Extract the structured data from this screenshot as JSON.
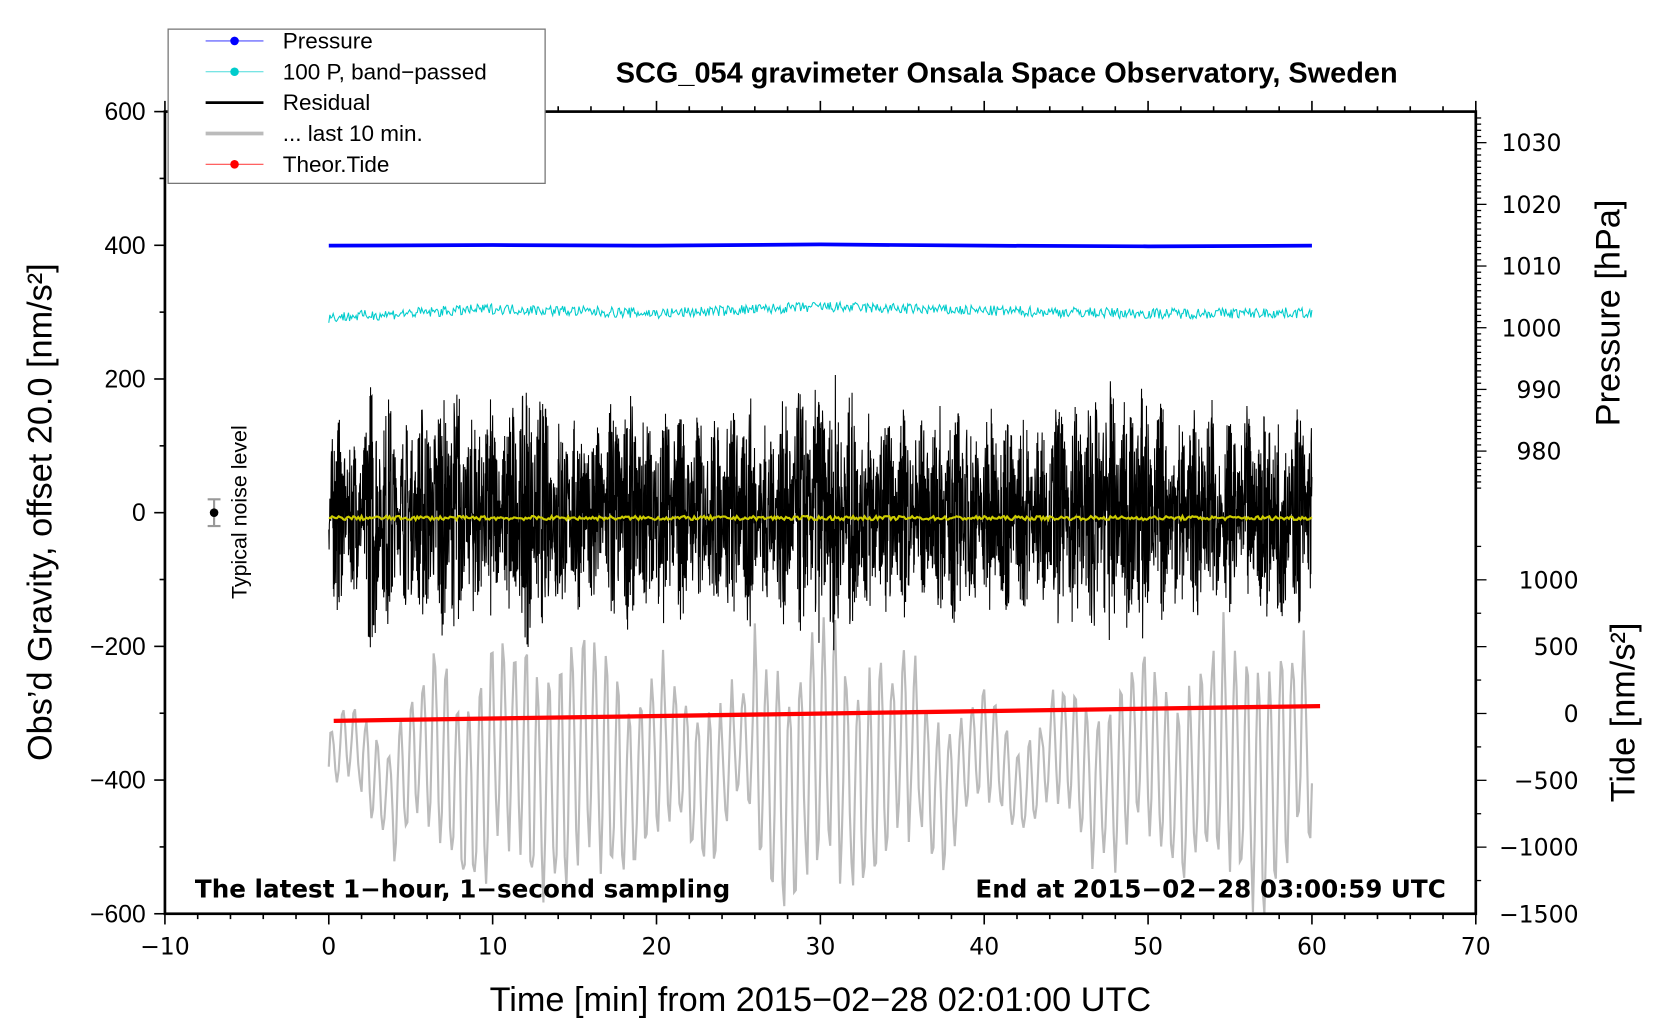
{
  "chart_data": {
    "type": "line",
    "title": "SCG_054 gravimeter Onsala Space Observatory, Sweden",
    "xlabel": "Time [min] from 2015−02−28 02:01:00 UTC",
    "ylabel": "Obs’d Gravity, offset 20.0 [nm/s²]",
    "ylabel_pressure": "Pressure [hPa]",
    "ylabel_tide": "Tide [nm/s²]",
    "annotation_left": "The latest 1−hour, 1−second sampling",
    "annotation_right": "End at 2015−02−28 03:00:59 UTC",
    "noise_label": "Typical noise level",
    "noise_bar": {
      "x": -7,
      "y": 0,
      "err": 20
    },
    "xlim": [
      -10,
      70
    ],
    "ylim": [
      -600,
      600
    ],
    "pressure_lim": [
      980,
      1030
    ],
    "tide_lim": [
      -1500,
      1000
    ],
    "x_ticks": [
      "−10",
      "0",
      "10",
      "20",
      "30",
      "40",
      "50",
      "60",
      "70"
    ],
    "x_tick_values": [
      -10,
      0,
      10,
      20,
      30,
      40,
      50,
      60,
      70
    ],
    "y_ticks": [
      "−600",
      "−400",
      "−200",
      "0",
      "200",
      "400",
      "600"
    ],
    "y_tick_values": [
      -600,
      -400,
      -200,
      0,
      200,
      400,
      600
    ],
    "pressure_ticks": [
      "980",
      "990",
      "1000",
      "1010",
      "1020",
      "1030"
    ],
    "pressure_tick_values": [
      980,
      990,
      1000,
      1010,
      1020,
      1030
    ],
    "tide_ticks": [
      "−1500",
      "−1000",
      "−500",
      "0",
      "500",
      "1000"
    ],
    "tide_tick_values": [
      -1500,
      -1000,
      -500,
      0,
      500,
      1000
    ],
    "legend": [
      {
        "label": "Pressure",
        "color": "#0000ff",
        "marker": true
      },
      {
        "label": "100 P, band−passed",
        "color": "#00cccc",
        "marker": true
      },
      {
        "label": "Residual",
        "color": "#000000",
        "marker": false
      },
      {
        "label": "... last 10 min.",
        "color": "#bbbbbb",
        "marker": false
      },
      {
        "label": "Theor.Tide",
        "color": "#ff0000",
        "marker": true
      }
    ],
    "series": [
      {
        "name": "Pressure",
        "axis": "pressure",
        "color": "#0000ff",
        "x": [
          0,
          10,
          20,
          30,
          40,
          50,
          60
        ],
        "values": [
          1013.3,
          1013.4,
          1013.3,
          1013.5,
          1013.3,
          1013.2,
          1013.3
        ]
      },
      {
        "name": "100 P, band-passed",
        "axis": "left",
        "color": "#00cccc",
        "x": [
          0,
          10,
          20,
          30,
          40,
          50,
          60
        ],
        "values": [
          292,
          305,
          298,
          308,
          302,
          298,
          299
        ]
      },
      {
        "name": "Residual",
        "axis": "left",
        "color": "#000000",
        "x_range": [
          0,
          60
        ],
        "center": 0,
        "envelope": [
          150,
          120,
          210,
          180,
          140,
          170,
          190,
          200,
          160,
          180,
          150,
          200,
          210,
          170,
          160,
          150,
          150,
          190,
          180,
          160,
          180,
          170,
          150,
          150,
          170,
          180,
          140,
          170,
          190,
          200,
          210,
          190,
          170,
          160,
          150,
          160,
          150,
          170,
          180,
          140,
          170,
          160,
          150,
          140,
          170,
          180,
          190,
          200,
          180,
          210,
          170,
          150,
          160,
          170,
          150,
          140,
          160,
          170,
          160,
          170
        ]
      },
      {
        "name": "... last 10 min.",
        "axis": "left",
        "color": "#bbbbbb",
        "x_range": [
          0,
          60
        ],
        "center": -380,
        "envelope": [
          60,
          80,
          120,
          160,
          180,
          190,
          200,
          190,
          180,
          150,
          140,
          130,
          110,
          190,
          200,
          210,
          200,
          160,
          120,
          100,
          90,
          80,
          100,
          130,
          150,
          160,
          170,
          200,
          210,
          180
        ]
      },
      {
        "name": "Theor.Tide",
        "axis": "tide",
        "color": "#ff0000",
        "x": [
          0.3,
          60.5
        ],
        "values": [
          -55,
          55
        ]
      },
      {
        "name": "Residual mean",
        "axis": "left",
        "color": "#cccc00",
        "x": [
          0,
          60
        ],
        "values": [
          -8,
          -8
        ]
      }
    ]
  }
}
